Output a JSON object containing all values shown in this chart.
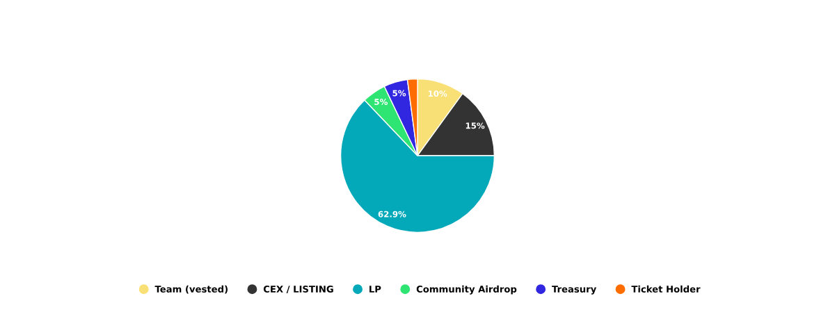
{
  "chart_data": {
    "type": "pie",
    "categories": [
      "Team (vested)",
      "CEX / LISTING",
      "LP",
      "Community Airdrop",
      "Treasury",
      "Ticket Holder"
    ],
    "values": [
      10,
      15,
      62.9,
      5,
      5,
      2.1
    ],
    "value_labels": [
      "10%",
      "15%",
      "62.9%",
      "5%",
      "5%",
      null
    ],
    "colors": [
      "#f9e076",
      "#333333",
      "#03a9b9",
      "#2ee574",
      "#3227e0",
      "#ff6d00"
    ],
    "legend": "bottom"
  }
}
